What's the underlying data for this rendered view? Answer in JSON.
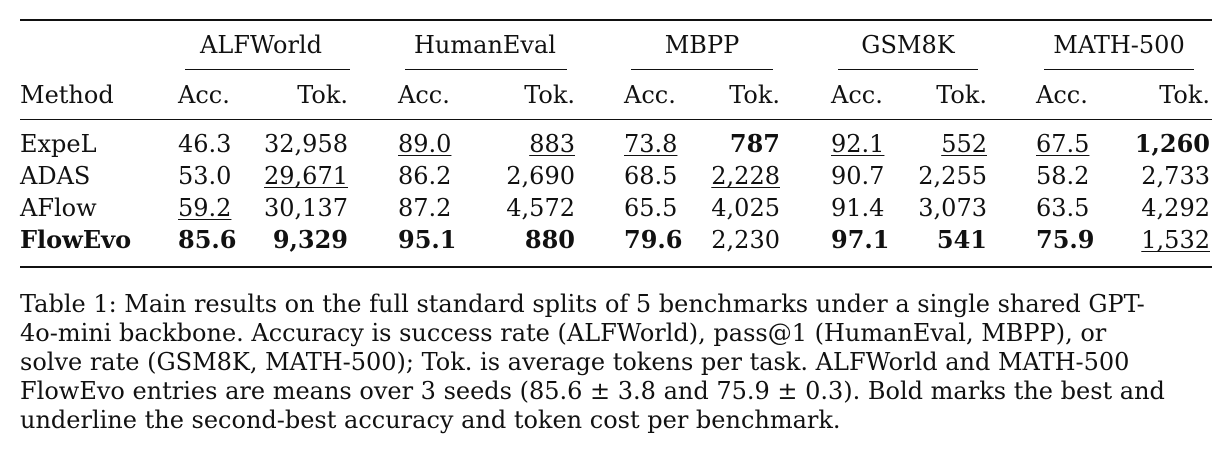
{
  "table": {
    "benchmarks": [
      "ALFWorld",
      "HumanEval",
      "MBPP",
      "GSM8K",
      "MATH-500"
    ],
    "method_header": "Method",
    "acc_header": "Acc.",
    "tok_header": "Tok.",
    "rows": [
      {
        "method": "ExpeL",
        "bold_method": false,
        "cells": [
          {
            "v": "46.3",
            "bold": false,
            "underline": false
          },
          {
            "v": "32,958",
            "bold": false,
            "underline": false
          },
          {
            "v": "89.0",
            "bold": false,
            "underline": true
          },
          {
            "v": "883",
            "bold": false,
            "underline": true
          },
          {
            "v": "73.8",
            "bold": false,
            "underline": true
          },
          {
            "v": "787",
            "bold": true,
            "underline": false
          },
          {
            "v": "92.1",
            "bold": false,
            "underline": true
          },
          {
            "v": "552",
            "bold": false,
            "underline": true
          },
          {
            "v": "67.5",
            "bold": false,
            "underline": true
          },
          {
            "v": "1,260",
            "bold": true,
            "underline": false
          }
        ]
      },
      {
        "method": "ADAS",
        "bold_method": false,
        "cells": [
          {
            "v": "53.0",
            "bold": false,
            "underline": false
          },
          {
            "v": "29,671",
            "bold": false,
            "underline": true
          },
          {
            "v": "86.2",
            "bold": false,
            "underline": false
          },
          {
            "v": "2,690",
            "bold": false,
            "underline": false
          },
          {
            "v": "68.5",
            "bold": false,
            "underline": false
          },
          {
            "v": "2,228",
            "bold": false,
            "underline": true
          },
          {
            "v": "90.7",
            "bold": false,
            "underline": false
          },
          {
            "v": "2,255",
            "bold": false,
            "underline": false
          },
          {
            "v": "58.2",
            "bold": false,
            "underline": false
          },
          {
            "v": "2,733",
            "bold": false,
            "underline": false
          }
        ]
      },
      {
        "method": "AFlow",
        "bold_method": false,
        "cells": [
          {
            "v": "59.2",
            "bold": false,
            "underline": true
          },
          {
            "v": "30,137",
            "bold": false,
            "underline": false
          },
          {
            "v": "87.2",
            "bold": false,
            "underline": false
          },
          {
            "v": "4,572",
            "bold": false,
            "underline": false
          },
          {
            "v": "65.5",
            "bold": false,
            "underline": false
          },
          {
            "v": "4,025",
            "bold": false,
            "underline": false
          },
          {
            "v": "91.4",
            "bold": false,
            "underline": false
          },
          {
            "v": "3,073",
            "bold": false,
            "underline": false
          },
          {
            "v": "63.5",
            "bold": false,
            "underline": false
          },
          {
            "v": "4,292",
            "bold": false,
            "underline": false
          }
        ]
      },
      {
        "method": "FlowEvo",
        "bold_method": true,
        "cells": [
          {
            "v": "85.6",
            "bold": true,
            "underline": false
          },
          {
            "v": "9,329",
            "bold": true,
            "underline": false
          },
          {
            "v": "95.1",
            "bold": true,
            "underline": false
          },
          {
            "v": "880",
            "bold": true,
            "underline": false
          },
          {
            "v": "79.6",
            "bold": true,
            "underline": false
          },
          {
            "v": "2,230",
            "bold": false,
            "underline": false
          },
          {
            "v": "97.1",
            "bold": true,
            "underline": false
          },
          {
            "v": "541",
            "bold": true,
            "underline": false
          },
          {
            "v": "75.9",
            "bold": true,
            "underline": false
          },
          {
            "v": "1,532",
            "bold": false,
            "underline": true
          }
        ]
      }
    ]
  },
  "caption": {
    "lines": [
      "Table 1: Main results on the full standard splits of 5 benchmarks under a single shared GPT-",
      "4o-mini backbone. Accuracy is success rate (ALFWorld), pass@1 (HumanEval, MBPP), or",
      "solve rate (GSM8K, MATH-500); Tok. is average tokens per task. ALFWorld and MATH-500",
      "FlowEvo entries are means over 3 seeds (85.6 ± 3.8 and 75.9 ± 0.3). Bold marks the best and",
      "underline the second-best accuracy and token cost per benchmark."
    ]
  }
}
